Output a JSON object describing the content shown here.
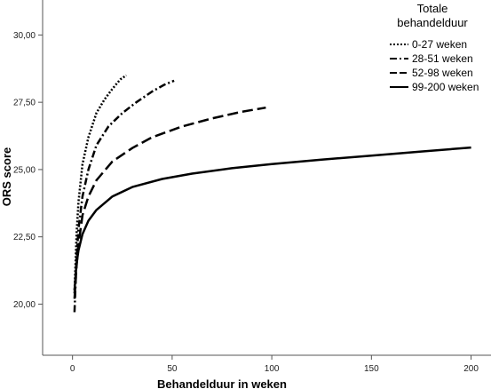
{
  "chart_data": {
    "type": "line",
    "xlabel": "Behandelduur in weken",
    "ylabel": "ORS score",
    "xlim": [
      -15,
      210
    ],
    "ylim": [
      18.1,
      31.3
    ],
    "x_ticks": [
      0,
      50,
      100,
      150,
      200
    ],
    "x_tick_labels": [
      "0",
      "50",
      "100",
      "150",
      "200"
    ],
    "y_ticks": [
      20,
      22.5,
      25,
      27.5,
      30
    ],
    "y_tick_labels": [
      "20,00",
      "22,50",
      "25,00",
      "27,50",
      "30,00"
    ],
    "grid": false,
    "legend": {
      "title_lines": [
        "Totale",
        "behandelduur"
      ],
      "placement": "top-right outside"
    },
    "series": [
      {
        "name": "0-27 weken",
        "dash": "dotted",
        "color": "#000000",
        "x": [
          1,
          2,
          3,
          5,
          8,
          12,
          16,
          20,
          24,
          27
        ],
        "y": [
          20.4,
          22.6,
          23.8,
          25.2,
          26.2,
          27.1,
          27.6,
          28.0,
          28.35,
          28.5
        ]
      },
      {
        "name": "28-51 weken",
        "dash": "dash-dot",
        "color": "#000000",
        "x": [
          1,
          2,
          3,
          5,
          8,
          12,
          18,
          25,
          32,
          40,
          46,
          51
        ],
        "y": [
          19.7,
          21.7,
          22.8,
          24.0,
          25.0,
          25.9,
          26.6,
          27.1,
          27.5,
          27.9,
          28.15,
          28.3
        ]
      },
      {
        "name": "52-98 weken",
        "dash": "long-dash",
        "color": "#000000",
        "x": [
          1,
          2,
          3,
          5,
          8,
          12,
          20,
          30,
          40,
          55,
          70,
          85,
          97
        ],
        "y": [
          20.2,
          21.4,
          22.2,
          23.3,
          24.0,
          24.6,
          25.3,
          25.8,
          26.2,
          26.6,
          26.9,
          27.15,
          27.3
        ]
      },
      {
        "name": "99-200 weken",
        "dash": "solid",
        "color": "#000000",
        "x": [
          1,
          2,
          3,
          5,
          8,
          12,
          20,
          30,
          45,
          60,
          80,
          100,
          125,
          150,
          175,
          200
        ],
        "y": [
          20.5,
          21.5,
          22.0,
          22.6,
          23.1,
          23.5,
          24.0,
          24.35,
          24.65,
          24.85,
          25.05,
          25.2,
          25.37,
          25.52,
          25.67,
          25.82
        ]
      }
    ]
  }
}
